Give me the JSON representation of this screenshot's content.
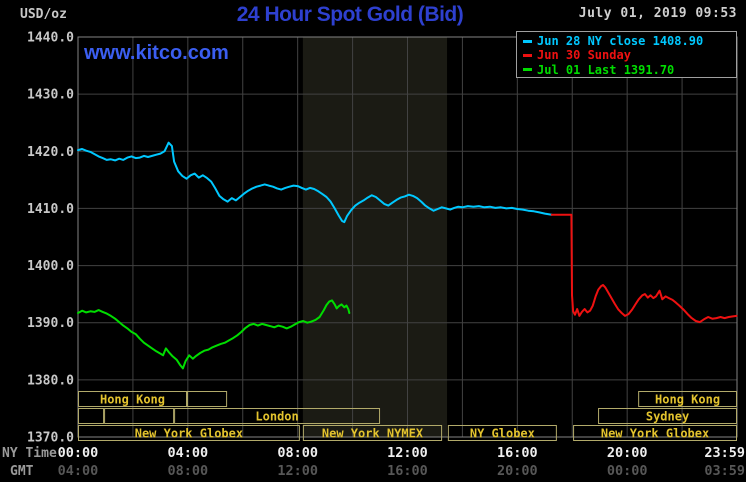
{
  "header": {
    "title": "24 Hour Spot Gold (Bid)",
    "datetime": "July 01, 2019 09:53",
    "watermark": "www.kitco.com",
    "unit_label": "USD/oz"
  },
  "legend": {
    "items": [
      {
        "label": "Jun 28 NY close 1408.90",
        "color": "#00c8ff"
      },
      {
        "label": "Jun 30 Sunday",
        "color": "#ee1111"
      },
      {
        "label": "Jul 01 Last 1391.70",
        "color": "#00dd00"
      }
    ]
  },
  "axes": {
    "y_ticks": [
      "1440.0",
      "1430.0",
      "1420.0",
      "1410.0",
      "1400.0",
      "1390.0",
      "1380.0",
      "1370.0"
    ],
    "x_row1_label": "NY Time",
    "x_row2_label": "GMT",
    "x_row1_ticks": [
      "00:00",
      "04:00",
      "08:00",
      "12:00",
      "16:00",
      "20:00",
      "23:59"
    ],
    "x_row2_ticks": [
      "04:00",
      "08:00",
      "12:00",
      "16:00",
      "20:00",
      "00:00",
      "03:59"
    ]
  },
  "sessions": {
    "rows": [
      [
        {
          "label": "Hong Kong",
          "start": 0,
          "end": 3.97
        },
        {
          "label": "",
          "start": 3.97,
          "end": 5.43
        },
        {
          "label": "Hong Kong",
          "start": 20.4,
          "end": 24
        }
      ],
      [
        {
          "label": "",
          "start": 0,
          "end": 0.95
        },
        {
          "label": "",
          "start": 0.95,
          "end": 3.5
        },
        {
          "label": "London",
          "start": 3.5,
          "end": 11.0
        },
        {
          "label": "Sydney",
          "start": 18.94,
          "end": 24
        }
      ],
      [
        {
          "label": "New York Globex",
          "start": 0,
          "end": 8.08
        },
        {
          "label": "New York NYMEX",
          "start": 8.19,
          "end": 13.26
        },
        {
          "label": "NY Globex",
          "start": 13.47,
          "end": 17.44
        },
        {
          "label": "New York Globex",
          "start": 18.03,
          "end": 24
        }
      ]
    ]
  },
  "chart_data": {
    "type": "line",
    "title": "24 Hour Spot Gold (Bid)",
    "x_unit": "hours, NY time (0 = 00:00, 24 = 23:59)",
    "xlim": [
      0,
      24
    ],
    "ylim": [
      1370,
      1440
    ],
    "ylabel": "USD/oz",
    "y_gridline_step": 10,
    "x_gridline_step_hours": 2,
    "grid": true,
    "legend_position": "top-right",
    "highlight_band_hours": [
      8.19,
      13.44
    ],
    "series": [
      {
        "name": "Jun 28 NY close",
        "close": 1408.9,
        "color": "#00c8ff",
        "points": [
          [
            0,
            1420.2
          ],
          [
            0.15,
            1420.4
          ],
          [
            0.3,
            1420.1
          ],
          [
            0.45,
            1419.9
          ],
          [
            0.6,
            1419.5
          ],
          [
            0.75,
            1419.1
          ],
          [
            0.9,
            1418.8
          ],
          [
            1.05,
            1418.5
          ],
          [
            1.2,
            1418.6
          ],
          [
            1.35,
            1418.4
          ],
          [
            1.5,
            1418.7
          ],
          [
            1.65,
            1418.5
          ],
          [
            1.8,
            1418.9
          ],
          [
            1.95,
            1419.1
          ],
          [
            2.1,
            1418.8
          ],
          [
            2.25,
            1418.9
          ],
          [
            2.4,
            1419.2
          ],
          [
            2.55,
            1419.0
          ],
          [
            2.7,
            1419.2
          ],
          [
            2.85,
            1419.4
          ],
          [
            3.0,
            1419.6
          ],
          [
            3.15,
            1420.0
          ],
          [
            3.3,
            1421.5
          ],
          [
            3.42,
            1420.9
          ],
          [
            3.5,
            1418.2
          ],
          [
            3.65,
            1416.5
          ],
          [
            3.8,
            1415.7
          ],
          [
            3.95,
            1415.2
          ],
          [
            4.1,
            1415.8
          ],
          [
            4.25,
            1416.1
          ],
          [
            4.4,
            1415.4
          ],
          [
            4.55,
            1415.8
          ],
          [
            4.7,
            1415.3
          ],
          [
            4.85,
            1414.7
          ],
          [
            5.0,
            1413.5
          ],
          [
            5.15,
            1412.2
          ],
          [
            5.3,
            1411.6
          ],
          [
            5.45,
            1411.2
          ],
          [
            5.6,
            1411.8
          ],
          [
            5.75,
            1411.4
          ],
          [
            5.9,
            1412.0
          ],
          [
            6.05,
            1412.6
          ],
          [
            6.2,
            1413.1
          ],
          [
            6.35,
            1413.5
          ],
          [
            6.5,
            1413.8
          ],
          [
            6.65,
            1414.0
          ],
          [
            6.8,
            1414.2
          ],
          [
            6.95,
            1414.0
          ],
          [
            7.1,
            1413.8
          ],
          [
            7.25,
            1413.5
          ],
          [
            7.4,
            1413.3
          ],
          [
            7.55,
            1413.6
          ],
          [
            7.7,
            1413.8
          ],
          [
            7.85,
            1414.0
          ],
          [
            8.0,
            1413.9
          ],
          [
            8.15,
            1413.6
          ],
          [
            8.3,
            1413.3
          ],
          [
            8.45,
            1413.6
          ],
          [
            8.6,
            1413.4
          ],
          [
            8.75,
            1413.0
          ],
          [
            8.9,
            1412.5
          ],
          [
            9.05,
            1412.0
          ],
          [
            9.2,
            1411.2
          ],
          [
            9.35,
            1410.0
          ],
          [
            9.5,
            1408.7
          ],
          [
            9.62,
            1407.8
          ],
          [
            9.7,
            1407.6
          ],
          [
            9.8,
            1408.7
          ],
          [
            9.95,
            1409.7
          ],
          [
            10.1,
            1410.5
          ],
          [
            10.25,
            1411.0
          ],
          [
            10.4,
            1411.4
          ],
          [
            10.55,
            1411.9
          ],
          [
            10.7,
            1412.3
          ],
          [
            10.85,
            1412.0
          ],
          [
            11.0,
            1411.4
          ],
          [
            11.15,
            1410.8
          ],
          [
            11.3,
            1410.5
          ],
          [
            11.45,
            1411.0
          ],
          [
            11.6,
            1411.5
          ],
          [
            11.75,
            1411.9
          ],
          [
            11.9,
            1412.1
          ],
          [
            12.05,
            1412.4
          ],
          [
            12.2,
            1412.2
          ],
          [
            12.35,
            1411.8
          ],
          [
            12.5,
            1411.2
          ],
          [
            12.65,
            1410.5
          ],
          [
            12.8,
            1410.0
          ],
          [
            12.95,
            1409.6
          ],
          [
            13.1,
            1409.9
          ],
          [
            13.25,
            1410.2
          ],
          [
            13.4,
            1410.0
          ],
          [
            13.55,
            1409.8
          ],
          [
            13.7,
            1410.1
          ],
          [
            13.85,
            1410.3
          ],
          [
            14.0,
            1410.2
          ],
          [
            14.2,
            1410.4
          ],
          [
            14.4,
            1410.3
          ],
          [
            14.6,
            1410.4
          ],
          [
            14.8,
            1410.2
          ],
          [
            15.0,
            1410.3
          ],
          [
            15.2,
            1410.1
          ],
          [
            15.4,
            1410.2
          ],
          [
            15.6,
            1410.0
          ],
          [
            15.8,
            1410.1
          ],
          [
            16.0,
            1409.9
          ],
          [
            16.2,
            1409.8
          ],
          [
            16.4,
            1409.6
          ],
          [
            16.6,
            1409.5
          ],
          [
            16.8,
            1409.3
          ],
          [
            17.0,
            1409.1
          ],
          [
            17.25,
            1408.9
          ]
        ]
      },
      {
        "name": "Jun 30 Sunday",
        "color": "#ee1111",
        "points": [
          [
            17.25,
            1408.9
          ],
          [
            17.5,
            1408.9
          ],
          [
            17.75,
            1408.9
          ],
          [
            17.97,
            1408.9
          ],
          [
            17.99,
            1394.8
          ],
          [
            18.03,
            1392.0
          ],
          [
            18.1,
            1391.4
          ],
          [
            18.18,
            1392.4
          ],
          [
            18.26,
            1391.2
          ],
          [
            18.35,
            1391.9
          ],
          [
            18.45,
            1392.4
          ],
          [
            18.55,
            1391.8
          ],
          [
            18.65,
            1392.1
          ],
          [
            18.75,
            1393.0
          ],
          [
            18.85,
            1394.6
          ],
          [
            18.95,
            1395.8
          ],
          [
            19.05,
            1396.4
          ],
          [
            19.12,
            1396.6
          ],
          [
            19.2,
            1396.2
          ],
          [
            19.3,
            1395.4
          ],
          [
            19.42,
            1394.4
          ],
          [
            19.55,
            1393.3
          ],
          [
            19.68,
            1392.3
          ],
          [
            19.8,
            1391.7
          ],
          [
            19.92,
            1391.2
          ],
          [
            20.05,
            1391.5
          ],
          [
            20.18,
            1392.3
          ],
          [
            20.3,
            1393.2
          ],
          [
            20.42,
            1394.1
          ],
          [
            20.55,
            1394.8
          ],
          [
            20.65,
            1395.0
          ],
          [
            20.75,
            1394.4
          ],
          [
            20.85,
            1394.8
          ],
          [
            20.95,
            1394.3
          ],
          [
            21.05,
            1394.6
          ],
          [
            21.18,
            1395.6
          ],
          [
            21.28,
            1394.1
          ],
          [
            21.4,
            1394.6
          ],
          [
            21.52,
            1394.3
          ],
          [
            21.65,
            1394.0
          ],
          [
            21.78,
            1393.5
          ],
          [
            21.9,
            1393.0
          ],
          [
            22.05,
            1392.3
          ],
          [
            22.2,
            1391.5
          ],
          [
            22.35,
            1390.8
          ],
          [
            22.5,
            1390.3
          ],
          [
            22.65,
            1390.1
          ],
          [
            22.8,
            1390.6
          ],
          [
            22.95,
            1391.0
          ],
          [
            23.1,
            1390.7
          ],
          [
            23.25,
            1390.8
          ],
          [
            23.4,
            1391.0
          ],
          [
            23.55,
            1390.8
          ],
          [
            23.7,
            1391.0
          ],
          [
            23.85,
            1391.1
          ],
          [
            23.98,
            1391.2
          ]
        ]
      },
      {
        "name": "Jul 01 Last",
        "last": 1391.7,
        "color": "#00dd00",
        "points": [
          [
            0,
            1391.7
          ],
          [
            0.15,
            1392.1
          ],
          [
            0.3,
            1391.8
          ],
          [
            0.45,
            1392.0
          ],
          [
            0.6,
            1391.9
          ],
          [
            0.75,
            1392.2
          ],
          [
            0.9,
            1391.9
          ],
          [
            1.05,
            1391.6
          ],
          [
            1.2,
            1391.2
          ],
          [
            1.35,
            1390.7
          ],
          [
            1.5,
            1390.1
          ],
          [
            1.65,
            1389.5
          ],
          [
            1.8,
            1389.0
          ],
          [
            1.95,
            1388.4
          ],
          [
            2.1,
            1388.0
          ],
          [
            2.25,
            1387.2
          ],
          [
            2.4,
            1386.5
          ],
          [
            2.55,
            1386.0
          ],
          [
            2.7,
            1385.5
          ],
          [
            2.85,
            1385.0
          ],
          [
            3.0,
            1384.6
          ],
          [
            3.1,
            1384.3
          ],
          [
            3.2,
            1385.5
          ],
          [
            3.3,
            1384.9
          ],
          [
            3.45,
            1384.1
          ],
          [
            3.6,
            1383.5
          ],
          [
            3.72,
            1382.6
          ],
          [
            3.82,
            1382.0
          ],
          [
            3.92,
            1383.3
          ],
          [
            4.05,
            1384.3
          ],
          [
            4.18,
            1383.7
          ],
          [
            4.3,
            1384.2
          ],
          [
            4.45,
            1384.7
          ],
          [
            4.6,
            1385.1
          ],
          [
            4.75,
            1385.3
          ],
          [
            4.9,
            1385.7
          ],
          [
            5.05,
            1386.0
          ],
          [
            5.2,
            1386.3
          ],
          [
            5.35,
            1386.5
          ],
          [
            5.5,
            1386.9
          ],
          [
            5.65,
            1387.3
          ],
          [
            5.8,
            1387.8
          ],
          [
            5.95,
            1388.4
          ],
          [
            6.1,
            1389.1
          ],
          [
            6.25,
            1389.6
          ],
          [
            6.4,
            1389.8
          ],
          [
            6.55,
            1389.5
          ],
          [
            6.7,
            1389.8
          ],
          [
            6.85,
            1389.6
          ],
          [
            7.0,
            1389.4
          ],
          [
            7.15,
            1389.2
          ],
          [
            7.3,
            1389.5
          ],
          [
            7.45,
            1389.3
          ],
          [
            7.6,
            1389.0
          ],
          [
            7.75,
            1389.3
          ],
          [
            7.9,
            1389.7
          ],
          [
            8.05,
            1390.1
          ],
          [
            8.2,
            1390.3
          ],
          [
            8.35,
            1390.0
          ],
          [
            8.5,
            1390.2
          ],
          [
            8.65,
            1390.5
          ],
          [
            8.8,
            1391.0
          ],
          [
            8.95,
            1392.2
          ],
          [
            9.05,
            1393.1
          ],
          [
            9.15,
            1393.7
          ],
          [
            9.25,
            1393.9
          ],
          [
            9.35,
            1393.2
          ],
          [
            9.42,
            1392.5
          ],
          [
            9.5,
            1392.9
          ],
          [
            9.6,
            1393.2
          ],
          [
            9.7,
            1392.7
          ],
          [
            9.78,
            1393.0
          ],
          [
            9.85,
            1392.3
          ],
          [
            9.88,
            1391.7
          ]
        ]
      }
    ]
  },
  "colors": {
    "background": "#000000",
    "grid": "#424242",
    "plot_border": "#848484",
    "band": "#1b1b14",
    "title": "#2e40cf",
    "watermark": "#3b5ef0",
    "datetime": "#cfcfcf",
    "y_tick": "#c8c8c8",
    "x_tick": "#efefef",
    "axis_name": "#9a9a9a",
    "gmt_tick": "#575757",
    "session_border": "#b2aa6a",
    "session_text": "#e3c32e",
    "legend_border": "#9f9f9f"
  }
}
